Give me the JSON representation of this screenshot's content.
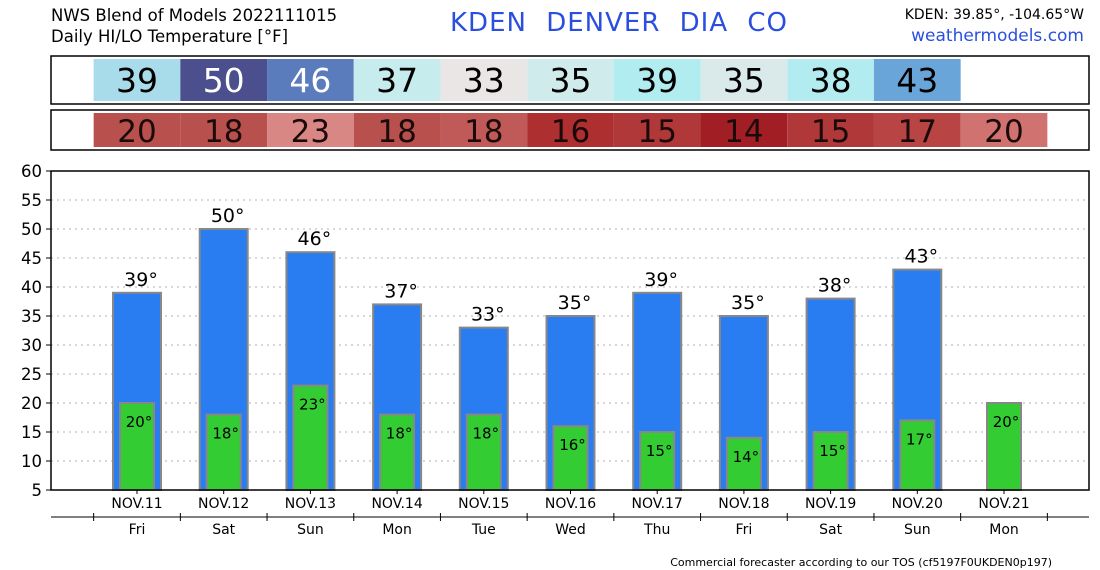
{
  "header": {
    "model_line": "NWS Blend of Models 2022111015",
    "subtitle": "Daily HI/LO Temperature [°F]",
    "station": "KDEN   DENVER DIA    CO",
    "coords": "KDEN: 39.85°, -104.65°W",
    "website": "weathermodels.com"
  },
  "footer": {
    "tos": "Commercial forecaster according to our TOS (cf5197F0UKDEN0p197)"
  },
  "colors": {
    "hi_bar": "#2a7df0",
    "lo_bar": "#33cc33",
    "bar_edge": "#888888",
    "hi_table": [
      "#a9dcea",
      "#4b4f8e",
      "#5b7cbc",
      "#c6ecee",
      "#ebe6e6",
      "#d0ebec",
      "#b1ecf0",
      "#dae9ea",
      "#b3ecf0",
      "#6aa5da",
      ""
    ],
    "lo_table": [
      "#b8504e",
      "#b8504e",
      "#d98785",
      "#b8504e",
      "#c05a58",
      "#ae2f2f",
      "#b03838",
      "#a11f24",
      "#b03838",
      "#b84444",
      "#d07270"
    ]
  },
  "chart_data": {
    "type": "bar",
    "title": "Daily HI/LO Temperature [°F]",
    "categories": [
      "NOV.11",
      "NOV.12",
      "NOV.13",
      "NOV.14",
      "NOV.15",
      "NOV.16",
      "NOV.17",
      "NOV.18",
      "NOV.19",
      "NOV.20",
      "NOV.21"
    ],
    "weekdays": [
      "Fri",
      "Sat",
      "Sun",
      "Mon",
      "Tue",
      "Wed",
      "Thu",
      "Fri",
      "Sat",
      "Sun",
      "Mon"
    ],
    "series": [
      {
        "values": [
          39,
          50,
          46,
          37,
          33,
          35,
          39,
          35,
          38,
          43,
          null
        ]
      },
      {
        "values": [
          20,
          18,
          23,
          18,
          18,
          16,
          15,
          14,
          15,
          17,
          20
        ]
      }
    ],
    "hi_labels": [
      "39°",
      "50°",
      "46°",
      "37°",
      "33°",
      "35°",
      "39°",
      "35°",
      "38°",
      "43°",
      ""
    ],
    "lo_labels": [
      "20°",
      "18°",
      "23°",
      "18°",
      "18°",
      "16°",
      "15°",
      "14°",
      "15°",
      "17°",
      "20°"
    ],
    "ylim": [
      5,
      60
    ],
    "yticks": [
      "5",
      "10",
      "15",
      "20",
      "25",
      "30",
      "35",
      "40",
      "45",
      "50",
      "55",
      "60"
    ],
    "ytick_values": [
      5,
      10,
      15,
      20,
      25,
      30,
      35,
      40,
      45,
      50,
      55,
      60
    ],
    "grid": true
  }
}
